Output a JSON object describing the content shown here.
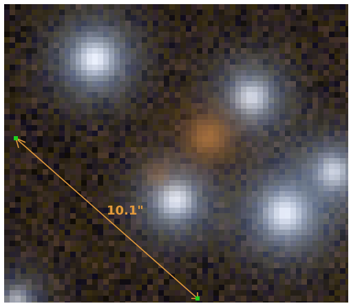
{
  "measurement": {
    "label": "10.1\"",
    "color": "#e39a3c",
    "endpoint_color": "#20d020"
  },
  "image_palette": {
    "background": "#2a211c",
    "star_core": "#eef3ff",
    "star_halo": "#8aa2c8",
    "galaxy_core": "#d18a45",
    "galaxy_halo": "#7e5230"
  }
}
